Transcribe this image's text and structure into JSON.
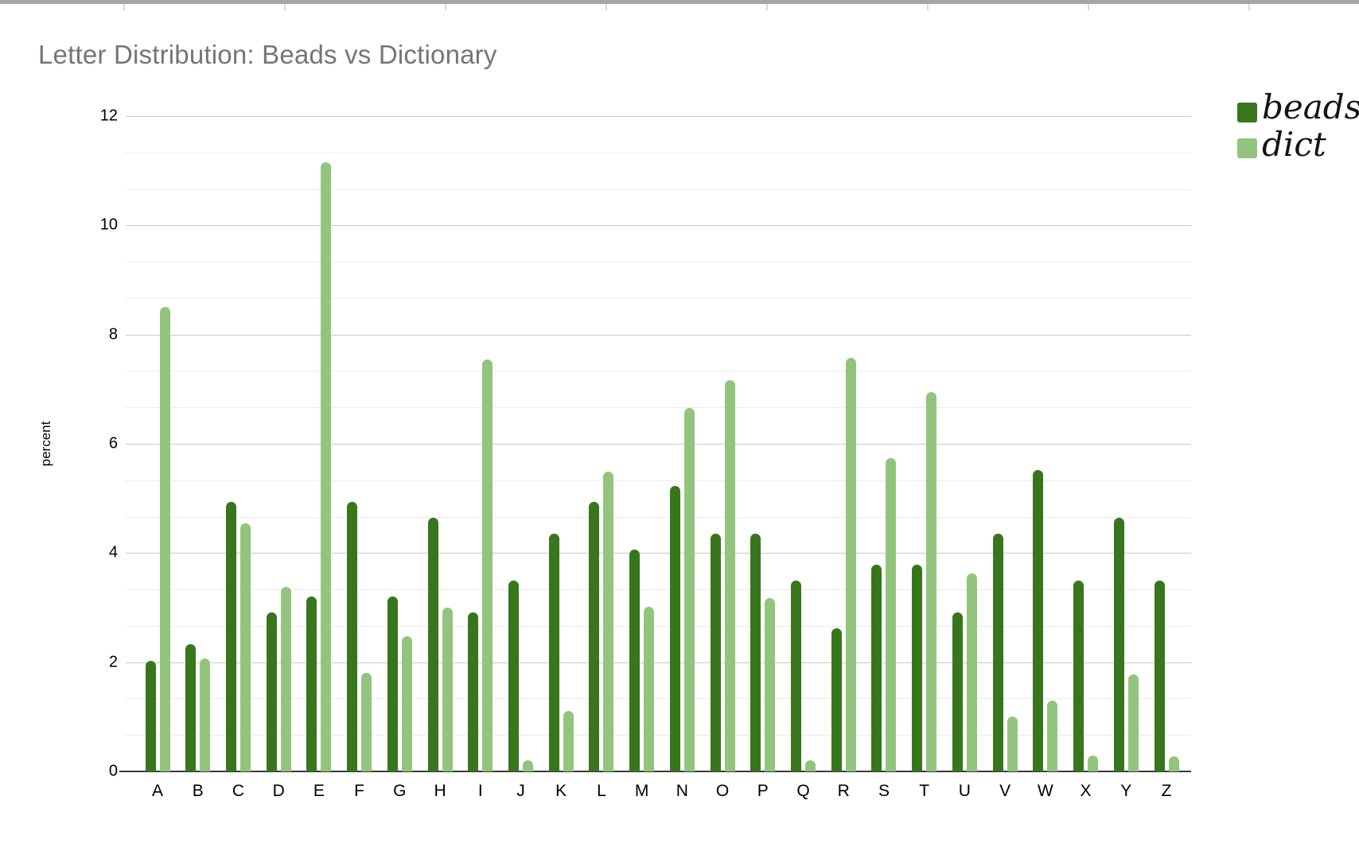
{
  "window": {
    "top_bar_color": "#a5a5a5",
    "top_tick_color": "#dadada"
  },
  "chart_data": {
    "type": "bar",
    "title": "Letter Distribution: Beads vs Dictionary",
    "xlabel": "",
    "ylabel": "percent",
    "categories": [
      "A",
      "B",
      "C",
      "D",
      "E",
      "F",
      "G",
      "H",
      "I",
      "J",
      "K",
      "L",
      "M",
      "N",
      "O",
      "P",
      "Q",
      "R",
      "S",
      "T",
      "U",
      "V",
      "W",
      "X",
      "Y",
      "Z"
    ],
    "series": [
      {
        "name": "beads",
        "color": "#38761d",
        "values": [
          2.03,
          2.33,
          4.94,
          2.91,
          3.2,
          4.94,
          3.2,
          4.65,
          2.91,
          3.49,
          4.36,
          4.94,
          4.07,
          5.23,
          4.36,
          4.36,
          3.49,
          2.62,
          3.78,
          3.78,
          2.91,
          4.36,
          5.52,
          3.49,
          4.65,
          3.49
        ]
      },
      {
        "name": "dict",
        "color": "#93c47d",
        "values": [
          8.5,
          2.07,
          4.54,
          3.38,
          11.16,
          1.81,
          2.47,
          3.0,
          7.54,
          0.2,
          1.1,
          5.49,
          3.01,
          6.65,
          7.16,
          3.17,
          0.2,
          7.58,
          5.74,
          6.95,
          3.63,
          1.01,
          1.29,
          0.29,
          1.78,
          0.27
        ]
      }
    ],
    "ylim": [
      0,
      12
    ],
    "y_major_ticks": [
      0,
      2,
      4,
      6,
      8,
      10,
      12
    ],
    "y_minor_divisions_per_major": 3,
    "grid": true,
    "legend_position": "top-right",
    "title_color": "#757575",
    "axis_text_color": "#000000",
    "major_grid_color": "#c9c9c9",
    "minor_grid_color": "#ececec",
    "baseline_color": "#3a3a3a"
  }
}
